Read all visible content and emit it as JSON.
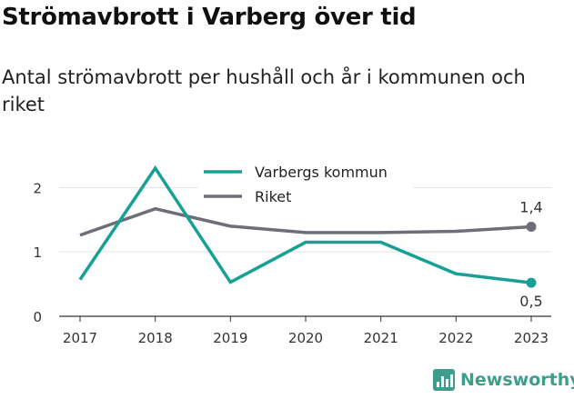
{
  "header": {
    "title": "Strömavbrott i Varberg över tid",
    "subtitle": "Antal strömavbrott per hushåll och år i kommunen och riket"
  },
  "brand": {
    "name": "Newsworthy",
    "icon": "bar-chart-icon",
    "color": "#3d9e8c"
  },
  "chart_data": {
    "type": "line",
    "title": "Strömavbrott i Varberg över tid",
    "subtitle": "Antal strömavbrott per hushåll och år i kommunen och riket",
    "x": [
      "2017",
      "2018",
      "2019",
      "2020",
      "2021",
      "2022",
      "2023"
    ],
    "ylim": [
      0,
      2.4
    ],
    "yticks": [
      {
        "value": 0,
        "label": "0"
      },
      {
        "value": 1,
        "label": "1"
      },
      {
        "value": 2,
        "label": "2"
      }
    ],
    "grid": true,
    "legend_position": "top-center",
    "series": [
      {
        "name": "Varbergs kommun",
        "color": "#19a096",
        "values": [
          0.57,
          2.3,
          0.53,
          1.15,
          1.15,
          0.66,
          0.52
        ],
        "end_label": "0,5"
      },
      {
        "name": "Riket",
        "color": "#6e6e78",
        "values": [
          1.26,
          1.67,
          1.4,
          1.3,
          1.3,
          1.32,
          1.39
        ],
        "end_label": "1,4"
      }
    ]
  }
}
